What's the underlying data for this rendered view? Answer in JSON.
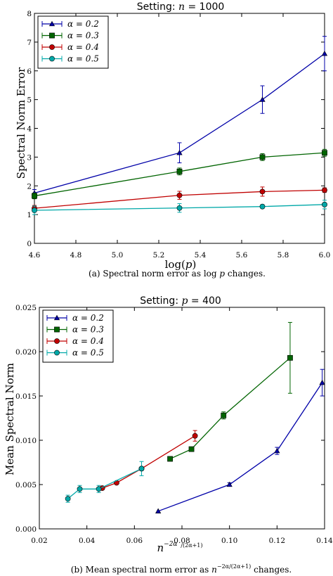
{
  "chart_data": [
    {
      "type": "line",
      "title": "Setting: n = 1000",
      "xlabel": "log(p)",
      "ylabel": "Spectral Norm Error",
      "xlim": [
        4.6,
        6.0
      ],
      "ylim": [
        0,
        8
      ],
      "xticks": [
        "4.6",
        "4.8",
        "5.0",
        "5.2",
        "5.4",
        "5.6",
        "5.8",
        "6.0"
      ],
      "yticks": [
        "0",
        "1",
        "2",
        "3",
        "4",
        "5",
        "6",
        "7",
        "8"
      ],
      "legend_position": "top-left",
      "grid": false,
      "caption": "(a) Spectral norm error as log p changes.",
      "series": [
        {
          "name": "α = 0.2",
          "color": "#0000a8",
          "marker": "triangle",
          "x": [
            4.6,
            5.3,
            5.7,
            6.0
          ],
          "y": [
            1.75,
            3.15,
            5.0,
            6.6
          ],
          "err": [
            0.12,
            0.35,
            0.48,
            0.6
          ]
        },
        {
          "name": "α = 0.3",
          "color": "#006400",
          "marker": "square",
          "x": [
            4.6,
            5.3,
            5.7,
            6.0
          ],
          "y": [
            1.65,
            2.5,
            3.0,
            3.15
          ],
          "err": [
            0.1,
            0.12,
            0.12,
            0.12
          ]
        },
        {
          "name": "α = 0.4",
          "color": "#c00000",
          "marker": "circle",
          "x": [
            4.6,
            5.3,
            5.7,
            6.0
          ],
          "y": [
            1.22,
            1.67,
            1.8,
            1.85
          ],
          "err": [
            0.1,
            0.14,
            0.16,
            0.08
          ]
        },
        {
          "name": "α = 0.5",
          "color": "#00a8a8",
          "marker": "circle",
          "x": [
            4.6,
            5.3,
            5.7,
            6.0
          ],
          "y": [
            1.15,
            1.23,
            1.28,
            1.35
          ],
          "err": [
            0.15,
            0.15,
            0.06,
            0.15
          ]
        }
      ]
    },
    {
      "type": "line",
      "title": "Setting: p = 400",
      "xlabel": "n^(−2α/(2α+1))",
      "ylabel": "Mean Spectral Norm",
      "xlim": [
        0.02,
        0.14
      ],
      "ylim": [
        0.0,
        0.025
      ],
      "xticks": [
        "0.02",
        "0.04",
        "0.06",
        "0.08",
        "0.10",
        "0.12",
        "0.14"
      ],
      "yticks": [
        "0.000",
        "0.005",
        "0.010",
        "0.015",
        "0.020",
        "0.025"
      ],
      "legend_position": "top-left",
      "grid": false,
      "caption": "(b) Mean spectral norm error as n^(−2α/(2α+1)) changes.",
      "series": [
        {
          "name": "α = 0.2",
          "color": "#0000a8",
          "marker": "triangle",
          "x": [
            0.07,
            0.1,
            0.12,
            0.139
          ],
          "y": [
            0.002,
            0.005,
            0.0088,
            0.0165
          ],
          "err": [
            0.0,
            0.0002,
            0.0004,
            0.0015
          ]
        },
        {
          "name": "α = 0.3",
          "color": "#006400",
          "marker": "square",
          "x": [
            0.075,
            0.084,
            0.0975,
            0.1255
          ],
          "y": [
            0.0079,
            0.009,
            0.0128,
            0.0193
          ],
          "err": [
            0.0002,
            0.0,
            0.0004,
            0.004
          ]
        },
        {
          "name": "α = 0.4",
          "color": "#c00000",
          "marker": "circle",
          "x": [
            0.0465,
            0.0525,
            0.063,
            0.0855
          ],
          "y": [
            0.0046,
            0.0052,
            0.0068,
            0.0105
          ],
          "err": [
            0.0,
            0.0,
            0.0,
            0.0006
          ]
        },
        {
          "name": "α = 0.5",
          "color": "#00a8a8",
          "marker": "circle",
          "x": [
            0.032,
            0.037,
            0.045,
            0.063
          ],
          "y": [
            0.0034,
            0.0045,
            0.0045,
            0.0068
          ],
          "err": [
            0.0004,
            0.0004,
            0.0004,
            0.0008
          ]
        }
      ]
    }
  ]
}
